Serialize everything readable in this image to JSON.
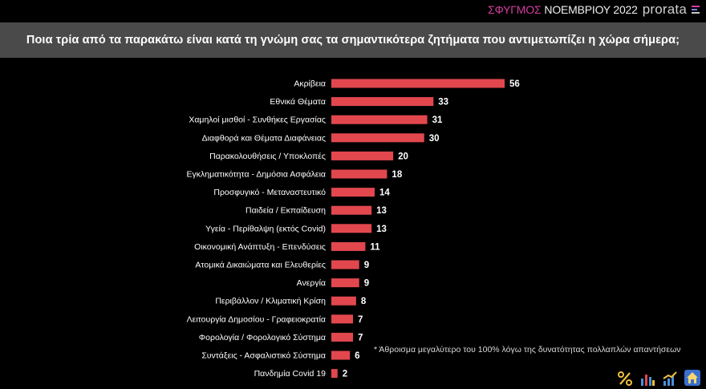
{
  "header": {
    "survey_name": "ΣΦΥΓΜΟΣ",
    "month": "ΝΟΕΜΒΡΙΟΥ 2022",
    "brand": "prorata"
  },
  "title": "Ποια τρία από τα παρακάτω είναι κατά τη γνώμη σας τα σημαντικότερα ζητήματα που αντιμετωπίζει η χώρα σήμερα;",
  "footnote": "* Άθροισμα μεγαλύτερο του 100% λόγω της δυνατότητας πολλαπλών απαντήσεων",
  "colors": {
    "bar": "#e2474e",
    "label": "#ffffff",
    "title_band": "#4a4a4a",
    "accent": "#d63da0"
  },
  "bottom_icons": [
    "percent-icon",
    "bar-chart-icon",
    "growth-chart-icon",
    "home-icon"
  ],
  "chart_data": {
    "type": "bar",
    "orientation": "horizontal",
    "title": "Ποια τρία από τα παρακάτω είναι κατά τη γνώμη σας τα σημαντικότερα ζητήματα που αντιμετωπίζει η χώρα σήμερα;",
    "xlabel": "",
    "ylabel": "",
    "xlim": [
      0,
      56
    ],
    "grid": false,
    "categories": [
      "Ακρίβεια",
      "Εθνικά Θέματα",
      "Χαμηλοί μισθοί - Συνθήκες Εργασίας",
      "Διαφθορά και Θέματα Διαφάνειας",
      "Παρακολουθήσεις / Υποκλοπές",
      "Εγκληματικότητα - Δημόσια Ασφάλεια",
      "Προσφυγικό - Μεταναστευτικό",
      "Παιδεία / Εκπαίδευση",
      "Υγεία - Περίθαλψη (εκτός Covid)",
      "Οικονομική Ανάπτυξη - Επενδύσεις",
      "Ατομικά Δικαιώματα και Ελευθερίες",
      "Ανεργία",
      "Περιβάλλον / Κλιματική Κρίση",
      "Λειτουργία Δημοσίου - Γραφειοκρατία",
      "Φορολογία / Φορολογικό Σύστημα",
      "Συντάξεις - Ασφαλιστικό Σύστημα",
      "Πανδημία Covid 19"
    ],
    "values": [
      56,
      33,
      31,
      30,
      20,
      18,
      14,
      13,
      13,
      11,
      9,
      9,
      8,
      7,
      7,
      6,
      2
    ]
  }
}
